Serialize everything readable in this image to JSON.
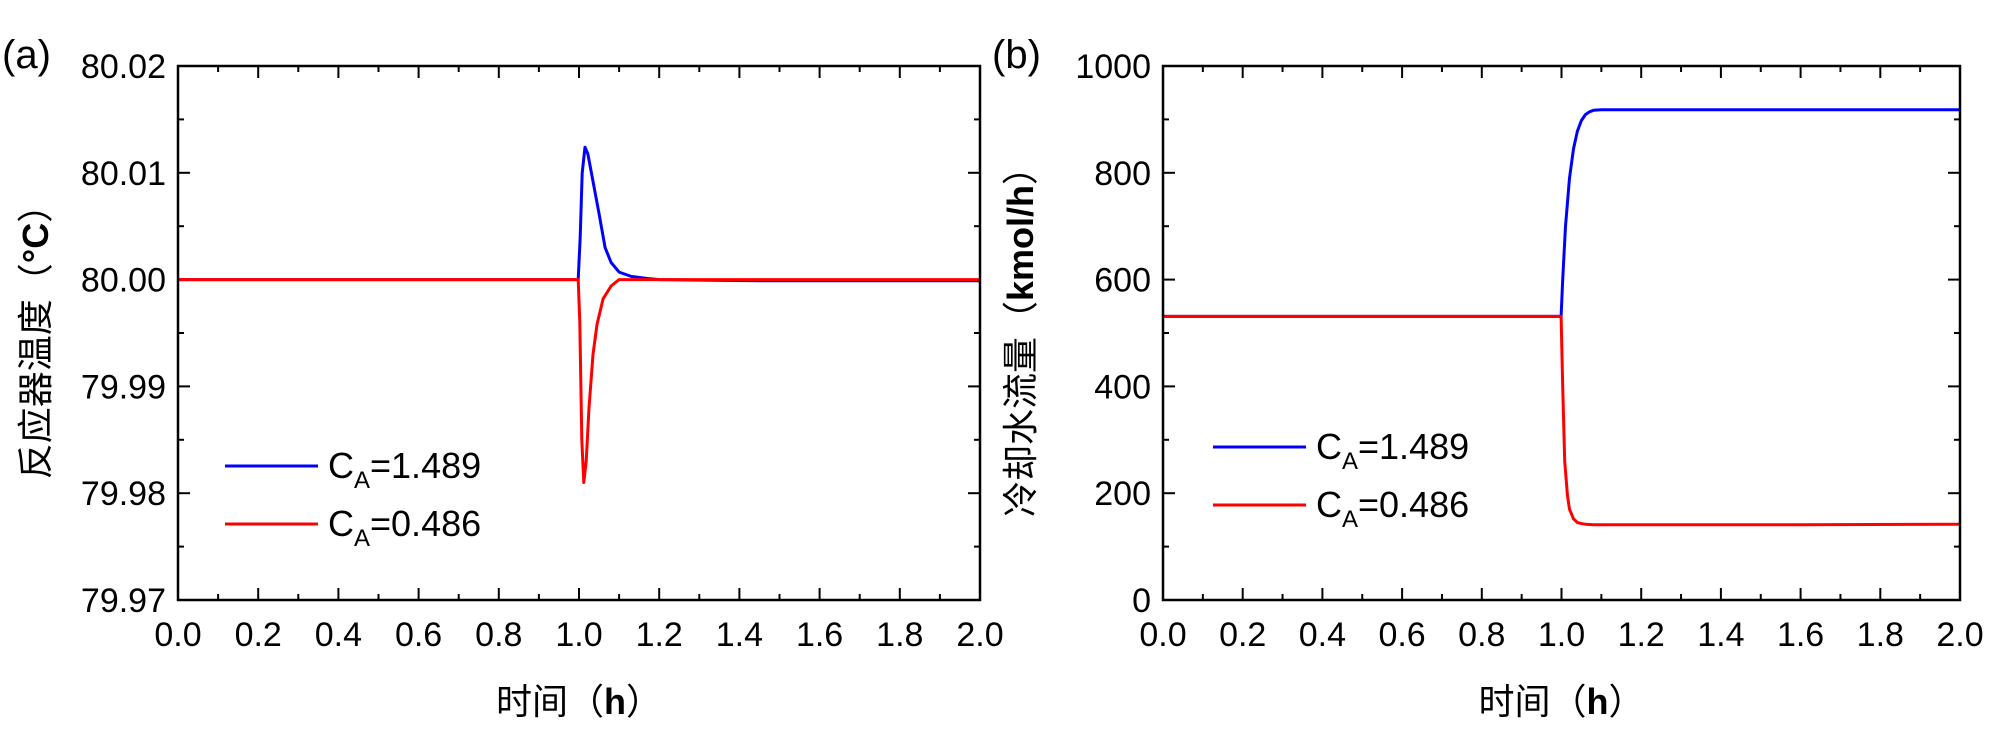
{
  "chart_data": [
    {
      "type": "line",
      "panel_label": "(a)",
      "xlabel_prefix": "时间（",
      "xlabel_unit": "h",
      "xlabel_suffix": "）",
      "ylabel_prefix": "反应器温度（",
      "ylabel_unit": "°C",
      "ylabel_suffix": "）",
      "xlim": [
        0.0,
        2.0
      ],
      "ylim": [
        79.97,
        80.02
      ],
      "xticks": [
        "0.0",
        "0.2",
        "0.4",
        "0.6",
        "0.8",
        "1.0",
        "1.2",
        "1.4",
        "1.6",
        "1.8",
        "2.0"
      ],
      "yticks": [
        "79.97",
        "79.98",
        "79.99",
        "80.00",
        "80.01",
        "80.02"
      ],
      "legend_position": "bottom-left",
      "series": [
        {
          "name_base": "C",
          "name_sub": "A",
          "name_rest": "=1.489",
          "color": "#0000ff",
          "x": [
            0.0,
            0.998,
            1.003,
            1.008,
            1.015,
            1.022,
            1.03,
            1.04,
            1.05,
            1.065,
            1.08,
            1.1,
            1.13,
            1.17,
            1.2,
            1.45,
            2.0
          ],
          "y": [
            80.0,
            80.0,
            80.004,
            80.01,
            80.0124,
            80.0118,
            80.0102,
            80.0082,
            80.0062,
            80.003,
            80.0016,
            80.0007,
            80.0003,
            80.0001,
            80.0,
            79.9999,
            79.9999
          ]
        },
        {
          "name_base": "C",
          "name_sub": "A",
          "name_rest": "=0.486",
          "color": "#ff0000",
          "x": [
            0.0,
            0.998,
            1.002,
            1.007,
            1.012,
            1.018,
            1.025,
            1.035,
            1.045,
            1.06,
            1.08,
            1.1,
            1.14,
            1.2,
            2.0
          ],
          "y": [
            80.0,
            80.0,
            79.996,
            79.985,
            79.981,
            79.983,
            79.988,
            79.993,
            79.9958,
            79.9982,
            79.9994,
            80.0,
            80.0,
            80.0,
            80.0
          ]
        }
      ]
    },
    {
      "type": "line",
      "panel_label": "(b)",
      "xlabel_prefix": "时间（",
      "xlabel_unit": "h",
      "xlabel_suffix": "）",
      "ylabel_prefix": "冷却水流量（",
      "ylabel_unit": "kmol/h",
      "ylabel_suffix": "）",
      "xlim": [
        0.0,
        2.0
      ],
      "ylim": [
        0,
        1000
      ],
      "xticks": [
        "0.0",
        "0.2",
        "0.4",
        "0.6",
        "0.8",
        "1.0",
        "1.2",
        "1.4",
        "1.6",
        "1.8",
        "2.0"
      ],
      "yticks": [
        "0",
        "200",
        "400",
        "600",
        "800",
        "1000"
      ],
      "legend_position": "center-left",
      "series": [
        {
          "name_base": "C",
          "name_sub": "A",
          "name_rest": "=1.489",
          "color": "#0000ff",
          "x": [
            0.0,
            0.999,
            1.003,
            1.01,
            1.02,
            1.03,
            1.04,
            1.05,
            1.06,
            1.07,
            1.08,
            1.1,
            1.15,
            2.0
          ],
          "y": [
            531,
            531,
            600,
            700,
            790,
            845,
            878,
            898,
            909,
            914,
            917,
            918,
            918,
            918
          ]
        },
        {
          "name_base": "C",
          "name_sub": "A",
          "name_rest": "=0.486",
          "color": "#ff0000",
          "x": [
            0.0,
            0.999,
            1.003,
            1.008,
            1.015,
            1.02,
            1.03,
            1.04,
            1.05,
            1.06,
            1.08,
            1.1,
            1.6,
            2.0
          ],
          "y": [
            531,
            531,
            400,
            260,
            195,
            170,
            152,
            145,
            143,
            142,
            141,
            141,
            141,
            142
          ]
        }
      ]
    }
  ]
}
